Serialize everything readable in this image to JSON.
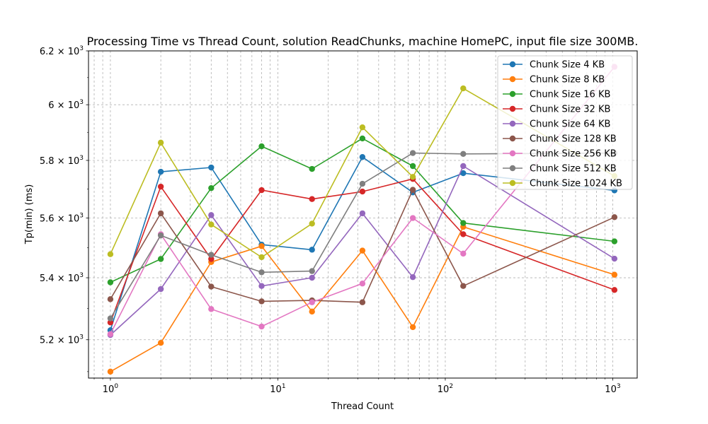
{
  "chart_data": {
    "type": "line",
    "title": "Processing Time vs Thread Count, solution ReadChunks, machine HomePC, input file size 300MB.",
    "xlabel": "Thread Count",
    "ylabel": "Tp(min) (ms)",
    "xscale": "log",
    "yscale": "log",
    "xlim": [
      0.74,
      1400
    ],
    "ylim": [
      5080,
      6200
    ],
    "grid": true,
    "legend_position": "top-right",
    "x": [
      1,
      2,
      4,
      8,
      16,
      32,
      64,
      128,
      1024
    ],
    "x_ticks": [
      {
        "value": 1,
        "base": "10",
        "exp": "0"
      },
      {
        "value": 10,
        "base": "10",
        "exp": "1"
      },
      {
        "value": 100,
        "base": "10",
        "exp": "2"
      },
      {
        "value": 1000,
        "base": "10",
        "exp": "3"
      }
    ],
    "y_ticks": [
      {
        "value": 5200,
        "mant": "5.2",
        "exp": "3"
      },
      {
        "value": 5400,
        "mant": "5.4",
        "exp": "3"
      },
      {
        "value": 5600,
        "mant": "5.6",
        "exp": "3"
      },
      {
        "value": 5800,
        "mant": "5.8",
        "exp": "3"
      },
      {
        "value": 6000,
        "mant": "6",
        "exp": "3"
      },
      {
        "value": 6200,
        "mant": "6.2",
        "exp": "3"
      }
    ],
    "series": [
      {
        "name": "Chunk Size 4 KB",
        "color": "#1f77b4",
        "values": [
          5230,
          5760,
          5775,
          5510,
          5493,
          5812,
          5688,
          5755,
          5695
        ]
      },
      {
        "name": "Chunk Size 8 KB",
        "color": "#ff7f0e",
        "values": [
          5100,
          5190,
          5452,
          5505,
          5290,
          5490,
          5240,
          5570,
          5410
        ]
      },
      {
        "name": "Chunk Size 16 KB",
        "color": "#2ca02c",
        "values": [
          5385,
          5462,
          5703,
          5850,
          5770,
          5878,
          5780,
          5583,
          5521
        ]
      },
      {
        "name": "Chunk Size 32 KB",
        "color": "#d62728",
        "values": [
          5255,
          5708,
          5462,
          5696,
          5665,
          5691,
          5735,
          5545,
          5360
        ]
      },
      {
        "name": "Chunk Size 64 KB",
        "color": "#9467bd",
        "values": [
          5215,
          5363,
          5610,
          5373,
          5400,
          5616,
          5402,
          5780,
          5463
        ]
      },
      {
        "name": "Chunk Size 128 KB",
        "color": "#8c564b",
        "values": [
          5330,
          5616,
          5371,
          5323,
          5326,
          5320,
          5697,
          5373,
          5603
        ]
      },
      {
        "name": "Chunk Size 256 KB",
        "color": "#e377c2",
        "values": [
          5218,
          5545,
          5298,
          5242,
          5320,
          5381,
          5600,
          5480,
          6140
        ]
      },
      {
        "name": "Chunk Size 512 KB",
        "color": "#7f7f7f",
        "values": [
          5268,
          5541,
          5476,
          5418,
          5422,
          5718,
          5826,
          5823,
          5826
        ]
      },
      {
        "name": "Chunk Size 1024 KB",
        "color": "#bcbd22",
        "values": [
          5478,
          5863,
          5578,
          5468,
          5581,
          5918,
          5742,
          6060,
          5745
        ]
      }
    ]
  }
}
